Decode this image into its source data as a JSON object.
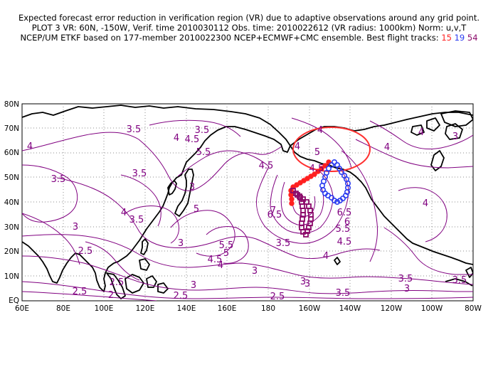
{
  "header": {
    "line1": "Expected forecast error reduction in verification region (VR) due to adaptive observations around any grid point.",
    "line2": "PLOT 3 VR: 60N, -150W, Verif. time 2010030112 Obs. time: 2010022612 (VR radius: 1000km) Norm: u,v,T",
    "line3_prefix": "NCEP/UM ETKF based on 177-member 2010022300 NCEP+ECMWF+CMC ensemble. Best flight tracks:",
    "track_a": "15",
    "track_b": "19",
    "track_c": "54"
  },
  "map": {
    "lat_labels": [
      "80N",
      "70N",
      "60N",
      "50N",
      "40N",
      "30N",
      "20N",
      "10N",
      "EQ"
    ],
    "lon_labels": [
      "60E",
      "80E",
      "100E",
      "120E",
      "140E",
      "160E",
      "180",
      "160W",
      "140W",
      "120W",
      "100W",
      "80W"
    ],
    "contour_labels": [
      {
        "id": "c1",
        "text": "3.5"
      },
      {
        "id": "c2",
        "text": "4"
      },
      {
        "id": "c3",
        "text": "4.5"
      },
      {
        "id": "c4",
        "text": "5.5"
      },
      {
        "id": "c5",
        "text": "3.5"
      },
      {
        "id": "c6",
        "text": "3.5"
      },
      {
        "id": "c7",
        "text": "4"
      },
      {
        "id": "c8",
        "text": "3.5"
      },
      {
        "id": "c9",
        "text": "3"
      },
      {
        "id": "c10",
        "text": "3.5"
      },
      {
        "id": "c11",
        "text": "5"
      },
      {
        "id": "c12",
        "text": "4"
      },
      {
        "id": "c13",
        "text": "4.5"
      },
      {
        "id": "c14",
        "text": "5"
      },
      {
        "id": "c15",
        "text": "4"
      },
      {
        "id": "c16",
        "text": "4"
      },
      {
        "id": "c17",
        "text": "4.5"
      },
      {
        "id": "c18",
        "text": "6.5"
      },
      {
        "id": "c19",
        "text": "7"
      },
      {
        "id": "c20",
        "text": "6.5"
      },
      {
        "id": "c21",
        "text": "6"
      },
      {
        "id": "c22",
        "text": "5.5"
      },
      {
        "id": "c23",
        "text": "4.5"
      },
      {
        "id": "c24",
        "text": "3.5"
      },
      {
        "id": "c25",
        "text": "5.5"
      },
      {
        "id": "c26",
        "text": "5"
      },
      {
        "id": "c27",
        "text": "4.5"
      },
      {
        "id": "c28",
        "text": "4"
      },
      {
        "id": "c29",
        "text": "3"
      },
      {
        "id": "c30",
        "text": "2.5"
      },
      {
        "id": "c31",
        "text": "3"
      },
      {
        "id": "c32",
        "text": "3"
      },
      {
        "id": "c33",
        "text": "3"
      },
      {
        "id": "c34",
        "text": "2.5"
      },
      {
        "id": "c35",
        "text": "2.5"
      },
      {
        "id": "c36",
        "text": "2"
      },
      {
        "id": "c37",
        "text": "2.5"
      },
      {
        "id": "c38",
        "text": "2.5"
      },
      {
        "id": "c39",
        "text": "3.5"
      },
      {
        "id": "c40",
        "text": "3.5"
      },
      {
        "id": "c41",
        "text": "3"
      },
      {
        "id": "c42",
        "text": "3"
      },
      {
        "id": "c43",
        "text": "3.5"
      },
      {
        "id": "c44",
        "text": "4"
      },
      {
        "id": "c45",
        "text": "4"
      },
      {
        "id": "c46",
        "text": "3"
      },
      {
        "id": "c47",
        "text": "4"
      },
      {
        "id": "c48",
        "text": "4"
      },
      {
        "id": "c49",
        "text": "3"
      }
    ],
    "colors": {
      "contour": "#800080",
      "verification_circle": "#ff3030",
      "track_15": "#ff2020",
      "track_19": "#2b3cf0",
      "track_54": "#8b0a6a",
      "grid": "#808080"
    }
  }
}
